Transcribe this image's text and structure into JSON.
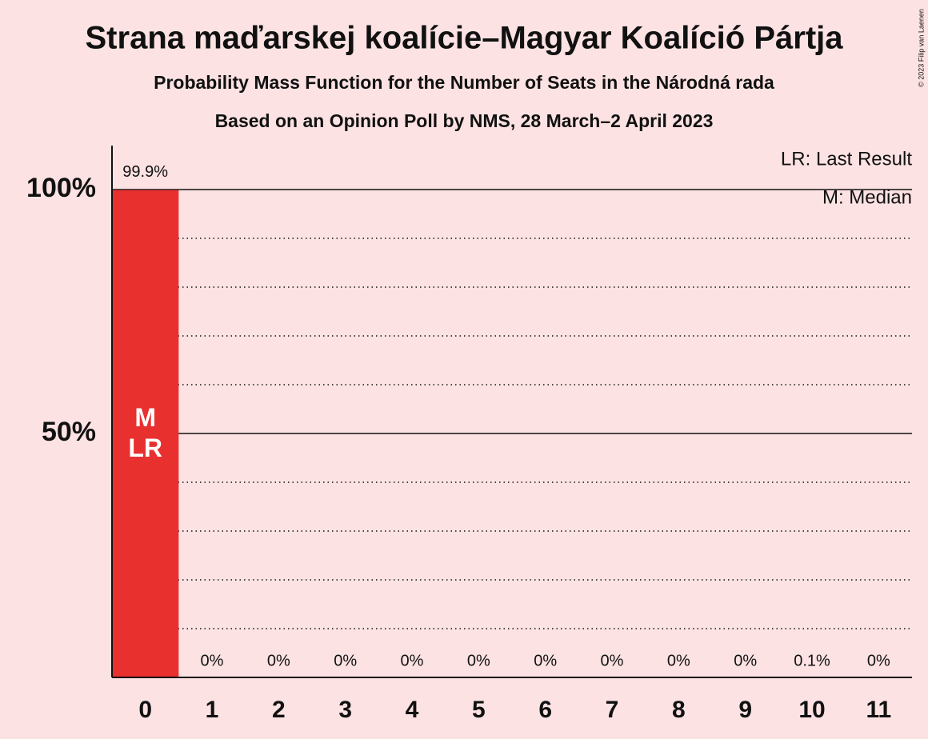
{
  "chart_data": {
    "type": "bar",
    "title": "Strana maďarskej koalície–Magyar Koalíció Pártja",
    "subtitle": [
      "Probability Mass Function for the Number of Seats in the Národná rada",
      "Based on an Opinion Poll by NMS, 28 March–2 April 2023"
    ],
    "copyright": "© 2023 Filip van Laenen",
    "categories": [
      "0",
      "1",
      "2",
      "3",
      "4",
      "5",
      "6",
      "7",
      "8",
      "9",
      "10",
      "11"
    ],
    "values": [
      99.9,
      0,
      0,
      0,
      0,
      0,
      0,
      0,
      0,
      0,
      0.1,
      0
    ],
    "value_labels": [
      "99.9%",
      "0%",
      "0%",
      "0%",
      "0%",
      "0%",
      "0%",
      "0%",
      "0%",
      "0%",
      "0.1%",
      "0%"
    ],
    "color": "#e8302f",
    "ylim": [
      0,
      109
    ],
    "yticks": [
      {
        "value": 50,
        "label": "50%"
      },
      {
        "value": 100,
        "label": "100%"
      }
    ],
    "minor_gridlines": [
      10,
      20,
      30,
      40,
      60,
      70,
      80,
      90
    ],
    "grid": true,
    "bar_annotations": [
      {
        "category": "0",
        "labels": [
          "M",
          "LR"
        ]
      }
    ],
    "legend": [
      "LR: Last Result",
      "M: Median"
    ],
    "legend_position": "top-right"
  }
}
